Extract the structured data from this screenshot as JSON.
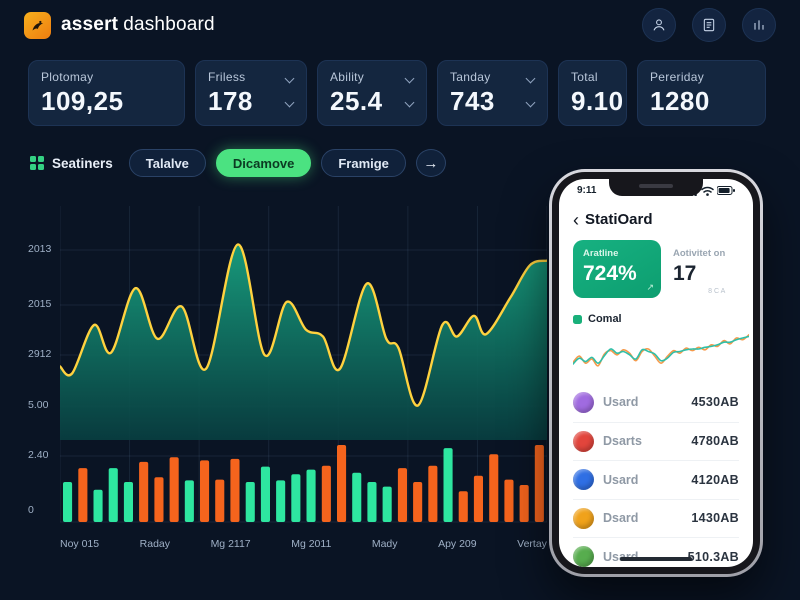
{
  "header": {
    "brand_bold": "assert",
    "brand_light": "dashboard",
    "action_icons": [
      "user",
      "document",
      "chart"
    ]
  },
  "stat_cards": [
    {
      "label": "Plotomay",
      "value": "109,25"
    },
    {
      "label": "Friless",
      "value": "178"
    },
    {
      "label": "Ability",
      "value": "25.4"
    },
    {
      "label": "Tanday",
      "value": "743"
    },
    {
      "label": "Total",
      "value": "9.10"
    },
    {
      "label": "Pereriday",
      "value": "1280"
    }
  ],
  "filters": {
    "group_label": "Seatiners",
    "pills": [
      {
        "label": "Talalve",
        "active": false
      },
      {
        "label": "Dicamove",
        "active": true
      },
      {
        "label": "Framige",
        "active": false
      }
    ],
    "more_arrow": "→"
  },
  "chart_data": [
    {
      "type": "area",
      "y_axis_labels": [
        "2013",
        "2015",
        "2912",
        "5.00",
        "2.40",
        "0"
      ],
      "x_labels": [
        "Noy 015",
        "Raday",
        "Mg 2117",
        "Mg 2011",
        "Mady",
        "Apy 209",
        "Vertay"
      ],
      "line_color": "#ffd23f",
      "fill_top": "#18a07f",
      "fill_bottom": "#083f41",
      "grid": true,
      "points": [
        [
          0,
          0.32
        ],
        [
          0.025,
          0.29
        ],
        [
          0.07,
          0.5
        ],
        [
          0.105,
          0.38
        ],
        [
          0.155,
          0.66
        ],
        [
          0.2,
          0.44
        ],
        [
          0.25,
          0.58
        ],
        [
          0.3,
          0.31
        ],
        [
          0.365,
          0.85
        ],
        [
          0.42,
          0.37
        ],
        [
          0.465,
          0.6
        ],
        [
          0.505,
          0.48
        ],
        [
          0.54,
          0.45
        ],
        [
          0.575,
          0.31
        ],
        [
          0.63,
          0.68
        ],
        [
          0.67,
          0.44
        ],
        [
          0.695,
          0.4
        ],
        [
          0.735,
          0.15
        ],
        [
          0.785,
          0.5
        ],
        [
          0.815,
          0.45
        ],
        [
          0.85,
          0.54
        ],
        [
          0.875,
          0.46
        ],
        [
          0.925,
          0.62
        ],
        [
          0.965,
          0.76
        ],
        [
          1,
          0.78
        ]
      ]
    },
    {
      "type": "bar",
      "colors": {
        "green": "#2ee6a0",
        "orange": "#f5641d"
      },
      "bars": [
        [
          "g",
          0.52
        ],
        [
          "o",
          0.7
        ],
        [
          "g",
          0.42
        ],
        [
          "g",
          0.7
        ],
        [
          "g",
          0.52
        ],
        [
          "o",
          0.78
        ],
        [
          "o",
          0.58
        ],
        [
          "o",
          0.84
        ],
        [
          "g",
          0.54
        ],
        [
          "o",
          0.8
        ],
        [
          "o",
          0.55
        ],
        [
          "o",
          0.82
        ],
        [
          "g",
          0.52
        ],
        [
          "g",
          0.72
        ],
        [
          "g",
          0.54
        ],
        [
          "g",
          0.62
        ],
        [
          "g",
          0.68
        ],
        [
          "o",
          0.73
        ],
        [
          "o",
          1.0
        ],
        [
          "g",
          0.64
        ],
        [
          "g",
          0.52
        ],
        [
          "g",
          0.46
        ],
        [
          "o",
          0.7
        ],
        [
          "o",
          0.52
        ],
        [
          "o",
          0.73
        ],
        [
          "g",
          0.96
        ],
        [
          "o",
          0.4
        ],
        [
          "o",
          0.6
        ],
        [
          "o",
          0.88
        ],
        [
          "o",
          0.55
        ],
        [
          "o",
          0.48
        ],
        [
          "o",
          1.0
        ]
      ]
    },
    {
      "type": "line",
      "context": "phone-mini-chart",
      "series": [
        {
          "name": "orange",
          "color": "#f59a4b",
          "values": [
            0.3,
            0.45,
            0.28,
            0.38,
            0.22,
            0.5,
            0.58,
            0.48,
            0.6,
            0.52,
            0.34,
            0.56,
            0.62,
            0.45,
            0.28,
            0.44,
            0.58,
            0.52,
            0.64,
            0.58,
            0.66,
            0.6,
            0.72,
            0.68,
            0.82,
            0.74,
            0.88,
            0.84,
            0.96
          ]
        },
        {
          "name": "teal",
          "color": "#2fbfa8",
          "values": [
            0.26,
            0.4,
            0.32,
            0.42,
            0.28,
            0.46,
            0.62,
            0.52,
            0.56,
            0.48,
            0.38,
            0.6,
            0.56,
            0.5,
            0.34,
            0.4,
            0.54,
            0.56,
            0.6,
            0.62,
            0.62,
            0.66,
            0.68,
            0.72,
            0.78,
            0.78,
            0.84,
            0.88,
            0.92
          ]
        }
      ]
    }
  ],
  "phone": {
    "status_time": "9:11",
    "back_chevron": "‹",
    "title": "StatiOard",
    "score_card": {
      "label": "Aratline",
      "value": "724%",
      "corner": "↗"
    },
    "side_stat": {
      "label": "Aotivitet on",
      "value": "17",
      "sub": "8 C A"
    },
    "legend_label": "Comal",
    "list": [
      {
        "name": "Usard",
        "value": "4530AB",
        "icon_color": "#a06be0"
      },
      {
        "name": "Dsarts",
        "value": "4780AB",
        "icon_color": "#e2453c"
      },
      {
        "name": "Usard",
        "value": "4120AB",
        "icon_color": "#2f6fe4"
      },
      {
        "name": "Dsard",
        "value": "1430AB",
        "icon_color": "#f0a21b"
      },
      {
        "name": "Usard",
        "value": "510.3AB",
        "icon_color": "#57ad4e"
      }
    ]
  },
  "colors": {
    "background": "#0a1424",
    "card": "#14263f",
    "accent_green": "#4be281",
    "bar_green": "#2ee6a0",
    "bar_orange": "#f5641d",
    "line_yellow": "#ffd23f"
  }
}
